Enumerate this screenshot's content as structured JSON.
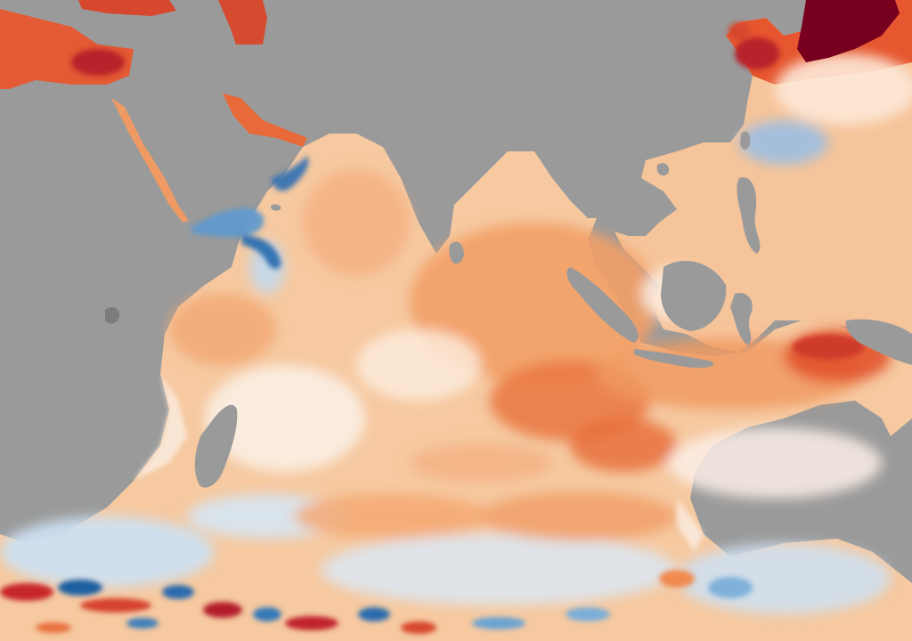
{
  "map": {
    "colors": {
      "land": "#9a9a9a",
      "neutral": "#fbf7f1",
      "warm_light": "#f8c79a",
      "warm": "#f4a670",
      "warm_strong": "#e86a3c",
      "hot": "#c8262b",
      "hottest": "#78001f",
      "cool_light": "#c9dcef",
      "cool": "#6aa3d2",
      "cold": "#1f5fa0"
    }
  }
}
